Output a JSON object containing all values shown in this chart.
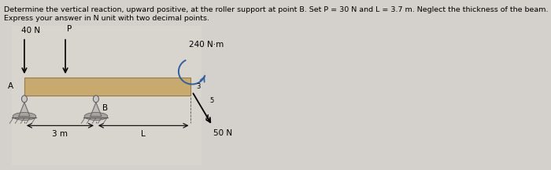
{
  "title_line1": "Determine the vertical reaction, upward positive, at the roller support at point B. Set P = 30 N and L = 3.7 m. Neglect the thickness of the beam.",
  "title_line2": "Express your answer in N unit with two decimal points.",
  "title_fontsize": 6.8,
  "bg_color": "#d4d0cb",
  "beam_color_face": "#c8a96e",
  "beam_color_edge": "#9e7b40",
  "force_40N_label": "40 N",
  "force_P_label": "P",
  "moment_label": "240 N·m",
  "force_50N_label": "50 N",
  "label_A": "A",
  "label_B": "B",
  "label_3m": "3 m",
  "label_L": "L",
  "diagram_bg": "#d8d4ce"
}
